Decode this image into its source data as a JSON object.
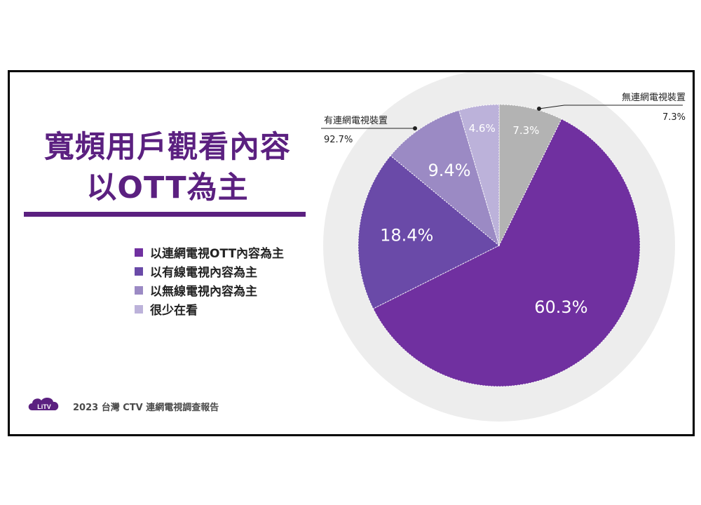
{
  "page": {
    "title_line1": "寬頻用戶觀看內容",
    "title_line2": "以OTT為主",
    "footer": "2023 台灣 CTV 連網電視調查報告",
    "logo_text": "LiTV"
  },
  "colors": {
    "title": "#5b2080",
    "outer_ring": "#ededed",
    "slices": [
      "#7030a0",
      "#6a4aa8",
      "#9b8ac4",
      "#bcb2da",
      "#b3b3b3"
    ]
  },
  "chart_data": {
    "type": "pie",
    "title": "",
    "outer_ring": {
      "label_connected": "有連網電視裝置",
      "value_connected": "92.7%",
      "label_unconnected": "無連網電視裝置",
      "value_unconnected": "7.3%"
    },
    "slices": [
      {
        "name": "以連網電視OTT內容為主",
        "value": 60.3,
        "label": "60.3%"
      },
      {
        "name": "以有線電視內容為主",
        "value": 18.4,
        "label": "18.4%"
      },
      {
        "name": "以無線電視內容為主",
        "value": 9.4,
        "label": "9.4%"
      },
      {
        "name": "很少在看",
        "value": 4.6,
        "label": "4.6%"
      },
      {
        "name": "無連網電視裝置",
        "value": 7.3,
        "label": "7.3%"
      }
    ],
    "legend": [
      "以連網電視OTT內容為主",
      "以有線電視內容為主",
      "以無線電視內容為主",
      "很少在看"
    ],
    "legend_position": "left",
    "grid": false
  }
}
